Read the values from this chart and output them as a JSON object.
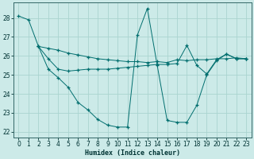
{
  "bg_color": "#cceae8",
  "grid_color": "#aad4d0",
  "line_color": "#006e6e",
  "xlabel": "Humidex (Indice chaleur)",
  "xlim": [
    -0.5,
    23.5
  ],
  "ylim": [
    21.7,
    28.8
  ],
  "yticks": [
    22,
    23,
    24,
    25,
    26,
    27,
    28
  ],
  "xticks": [
    0,
    1,
    2,
    3,
    4,
    5,
    6,
    7,
    8,
    9,
    10,
    11,
    12,
    13,
    14,
    15,
    16,
    17,
    18,
    19,
    20,
    21,
    22,
    23
  ],
  "line1_x": [
    0,
    1,
    2,
    3,
    4,
    5,
    6,
    7,
    8,
    9,
    10,
    11,
    12,
    13,
    14,
    15,
    16,
    17,
    18,
    19,
    20,
    21,
    22,
    23
  ],
  "line1_y": [
    28.1,
    27.9,
    26.5,
    26.4,
    26.3,
    26.15,
    26.05,
    25.95,
    25.85,
    25.8,
    25.75,
    25.7,
    25.7,
    25.65,
    25.7,
    25.65,
    25.8,
    25.75,
    25.8,
    25.8,
    25.85,
    25.85,
    25.9,
    25.85
  ],
  "line2_x": [
    2,
    3,
    4,
    5,
    6,
    7,
    8,
    9,
    10,
    11,
    12,
    13,
    14,
    15,
    16,
    17,
    18,
    19,
    20,
    21,
    22,
    23
  ],
  "line2_y": [
    26.5,
    25.85,
    25.3,
    25.2,
    25.25,
    25.3,
    25.3,
    25.3,
    25.35,
    25.4,
    25.45,
    25.5,
    25.55,
    25.55,
    25.6,
    26.55,
    25.5,
    25.05,
    25.8,
    26.1,
    25.85,
    25.85
  ],
  "line3_x": [
    2,
    3,
    4,
    5,
    6,
    7,
    8,
    9,
    10,
    11,
    12,
    13,
    14,
    15,
    16,
    17,
    18,
    19,
    20,
    21,
    22,
    23
  ],
  "line3_y": [
    26.5,
    25.3,
    24.85,
    24.35,
    23.55,
    23.15,
    22.65,
    22.35,
    22.25,
    22.25,
    27.1,
    28.5,
    25.5,
    22.6,
    22.5,
    22.5,
    23.4,
    25.0,
    25.75,
    26.1,
    25.85,
    25.85
  ]
}
